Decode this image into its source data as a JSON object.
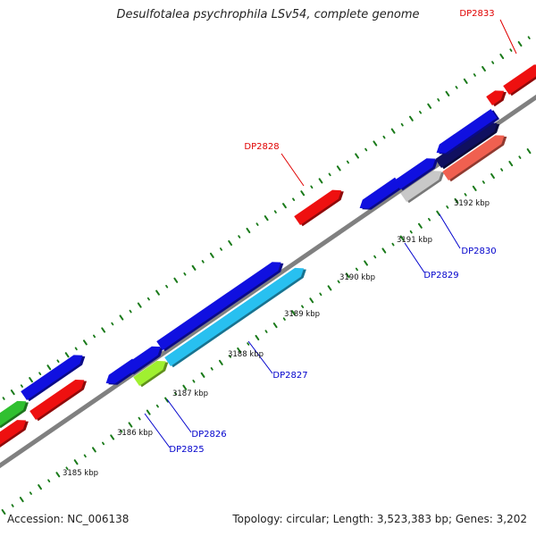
{
  "title": "Desulfotalea psychrophila LSv54, complete genome",
  "accession": "Accession: NC_006138",
  "summary": "Topology: circular; Length: 3,523,383 bp; Genes: 3,202",
  "colors": {
    "backbone": "#808080",
    "tick": "#1a7a1a",
    "gene_label_red": "#e00000",
    "gene_label_blue": "#0000cc",
    "blue": "#1010e0",
    "red": "#ee1010",
    "cyan": "#28c0f0",
    "lime": "#a0f030",
    "green": "#30c030",
    "grey": "#c8c8c8",
    "navy": "#101060",
    "salmon": "#f06050"
  },
  "scale_labels": [
    {
      "text": "3185 kbp"
    },
    {
      "text": "3186 kbp"
    },
    {
      "text": "3187 kbp"
    },
    {
      "text": "3188 kbp"
    },
    {
      "text": "3189 kbp"
    },
    {
      "text": "3190 kbp"
    },
    {
      "text": "3191 kbp"
    },
    {
      "text": "3192 kbp"
    }
  ],
  "gene_labels": [
    {
      "text": "DP2833",
      "color": "red"
    },
    {
      "text": "DP2828",
      "color": "red"
    },
    {
      "text": "DP2830",
      "color": "blue"
    },
    {
      "text": "DP2829",
      "color": "blue"
    },
    {
      "text": "DP2827",
      "color": "blue"
    },
    {
      "text": "DP2826",
      "color": "blue"
    },
    {
      "text": "DP2825",
      "color": "blue"
    }
  ]
}
